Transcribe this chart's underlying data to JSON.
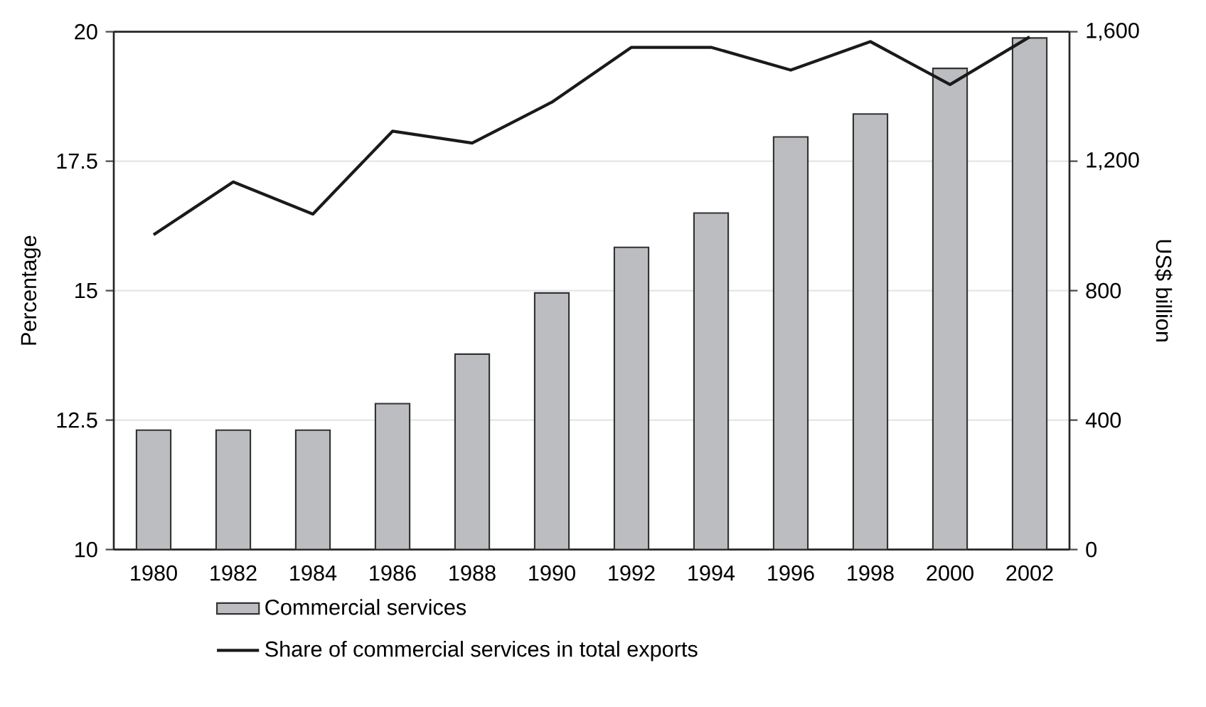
{
  "chart_data": {
    "type": "bar",
    "categories": [
      "1980",
      "1982",
      "1984",
      "1986",
      "1988",
      "1990",
      "1992",
      "1994",
      "1996",
      "1998",
      "2000",
      "2002"
    ],
    "series": [
      {
        "name": "Commercial services",
        "axis": "y2",
        "color": "#bcbdc1",
        "values": [
          369,
          369,
          369,
          451,
          604,
          793,
          934,
          1040,
          1275,
          1346,
          1487,
          1581
        ]
      },
      {
        "name": "Share of commercial services in total exports",
        "type": "line",
        "axis": "y",
        "color": "#1a1a1a",
        "values": [
          16.08,
          17.1,
          16.48,
          18.08,
          17.85,
          18.64,
          19.7,
          19.7,
          19.26,
          19.81,
          18.98,
          19.9
        ]
      }
    ],
    "ylabel": "Percentage",
    "y2label": "US$ billion",
    "ylim": [
      10,
      20
    ],
    "yticks": [
      10,
      12.5,
      15,
      17.5,
      20
    ],
    "y2lim": [
      0,
      1600
    ],
    "y2ticks": [
      0,
      400,
      800,
      {
        "value": 1200,
        "label": "1,200"
      },
      {
        "value": 1600,
        "label": "1,600"
      }
    ],
    "grid": "y",
    "legend": "bottom"
  }
}
